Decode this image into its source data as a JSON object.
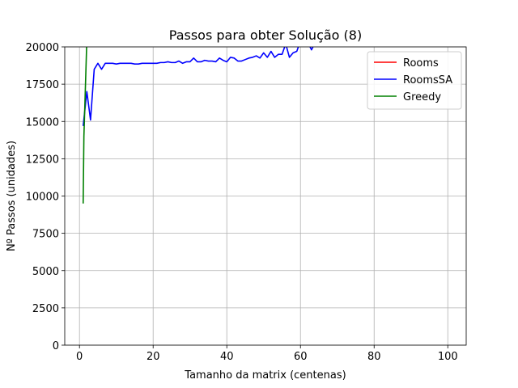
{
  "chart_data": {
    "type": "line",
    "title": "Passos para obter Solução (8)",
    "xlabel": "Tamanho da matrix (centenas)",
    "ylabel": "Nº Passos (unidades)",
    "xlim": [
      -4,
      105
    ],
    "ylim": [
      0,
      20000
    ],
    "xticks": [
      0,
      20,
      40,
      60,
      80,
      100
    ],
    "yticks": [
      0,
      2500,
      5000,
      7500,
      10000,
      12500,
      15000,
      17500,
      20000
    ],
    "grid": true,
    "legend_position": "top-right",
    "series": [
      {
        "name": "Rooms",
        "color": "#ff0000",
        "x": [],
        "y": []
      },
      {
        "name": "RoomsSA",
        "color": "#0000ff",
        "x": [
          1,
          2,
          3,
          4,
          5,
          6,
          7,
          8,
          9,
          10,
          11,
          12,
          13,
          14,
          15,
          16,
          17,
          18,
          19,
          20,
          21,
          22,
          23,
          24,
          25,
          26,
          27,
          28,
          29,
          30,
          31,
          32,
          33,
          34,
          35,
          36,
          37,
          38,
          39,
          40,
          41,
          42,
          43,
          44,
          45,
          46,
          47,
          48,
          49,
          50,
          51,
          52,
          53,
          54,
          55,
          56,
          57,
          58,
          59,
          60,
          61,
          62,
          63,
          64
        ],
        "y": [
          14700,
          17000,
          15100,
          18500,
          18900,
          18500,
          18900,
          18900,
          18900,
          18850,
          18900,
          18900,
          18900,
          18900,
          18850,
          18850,
          18900,
          18900,
          18900,
          18900,
          18900,
          18950,
          18950,
          19000,
          18950,
          18950,
          19050,
          18900,
          19000,
          19000,
          19250,
          19000,
          19000,
          19100,
          19050,
          19050,
          19000,
          19250,
          19100,
          19000,
          19300,
          19250,
          19050,
          19050,
          19150,
          19250,
          19300,
          19400,
          19250,
          19600,
          19300,
          19700,
          19300,
          19500,
          19500,
          20200,
          19300,
          19600,
          19700,
          20400,
          20600,
          20300,
          19800,
          20300
        ]
      },
      {
        "name": "Greedy",
        "color": "#008000",
        "x": [
          1,
          1.2,
          2
        ],
        "y": [
          9500,
          14000,
          20500
        ]
      }
    ]
  }
}
